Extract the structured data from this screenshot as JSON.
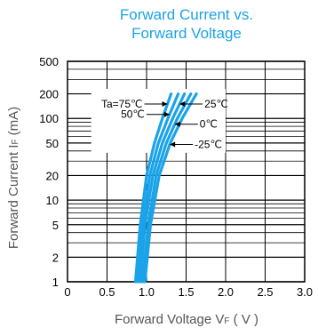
{
  "chart_data": {
    "type": "line",
    "title": "Forward Current vs.",
    "subtitle": "Forward Voltage",
    "xlabel": {
      "main": "Forward Voltage V",
      "sub": "F",
      "unit": " ( V )"
    },
    "ylabel": {
      "main": "Forward Current I",
      "sub": "F",
      "unit": " (mA)"
    },
    "xlim": [
      0,
      3.0
    ],
    "ylim": [
      1,
      500
    ],
    "y_scale": "log",
    "x_ticks": [
      "0",
      "0.5",
      "1.0",
      "1.5",
      "2.0",
      "2.5",
      "3.0"
    ],
    "x_tick_values": [
      0,
      0.5,
      1.0,
      1.5,
      2.0,
      2.5,
      3.0
    ],
    "y_ticks": [
      "1",
      "2",
      "5",
      "10",
      "20",
      "50",
      "100",
      "200",
      "500"
    ],
    "y_tick_values": [
      1,
      2,
      5,
      10,
      20,
      50,
      100,
      200,
      500
    ],
    "line_color": "#1aa3e8",
    "series": [
      {
        "name": "Ta=75℃",
        "x": [
          0.86,
          0.92,
          1.0,
          1.1,
          1.2,
          1.31
        ],
        "y": [
          1,
          5,
          20,
          50,
          100,
          200
        ]
      },
      {
        "name": "50℃",
        "x": [
          0.89,
          0.95,
          1.04,
          1.15,
          1.27,
          1.4
        ],
        "y": [
          1,
          5,
          20,
          50,
          100,
          200
        ]
      },
      {
        "name": "25℃",
        "x": [
          0.92,
          0.98,
          1.08,
          1.2,
          1.33,
          1.48
        ],
        "y": [
          1,
          5,
          20,
          50,
          100,
          200
        ]
      },
      {
        "name": "0℃",
        "x": [
          0.95,
          1.02,
          1.12,
          1.25,
          1.39,
          1.56
        ],
        "y": [
          1,
          5,
          20,
          50,
          100,
          200
        ]
      },
      {
        "name": "-25℃",
        "x": [
          0.98,
          1.05,
          1.16,
          1.3,
          1.45,
          1.63
        ],
        "y": [
          1,
          5,
          20,
          50,
          100,
          200
        ]
      }
    ],
    "annotations": [
      {
        "text": "Ta=75℃",
        "side": "left",
        "at_series": 0,
        "y": 150
      },
      {
        "text": "50℃",
        "side": "left",
        "at_series": 1,
        "y": 112
      },
      {
        "text": "25℃",
        "side": "right",
        "at_series": 2,
        "y": 150
      },
      {
        "text": "0℃",
        "side": "right",
        "at_series": 3,
        "y": 85
      },
      {
        "text": "-25℃",
        "side": "right",
        "at_series": 4,
        "y": 48
      }
    ]
  }
}
